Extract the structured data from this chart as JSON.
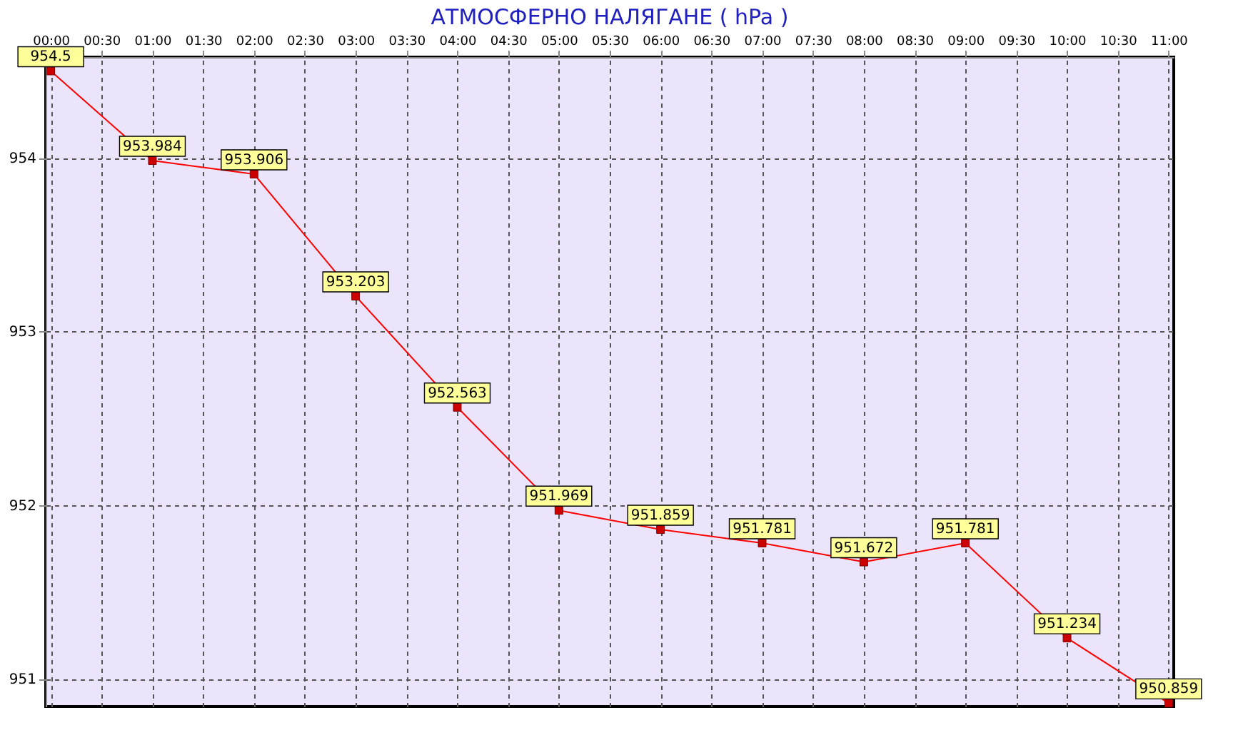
{
  "chart_data": {
    "type": "line",
    "title": "АТМОСФЕРНО НАЛЯГАНЕ  ( hPa )",
    "x": [
      0,
      1,
      2,
      3,
      4,
      5,
      6,
      7,
      8,
      9,
      10,
      11
    ],
    "series": [
      {
        "color": "#ff0000",
        "values": [
          954.5,
          953.984,
          953.906,
          953.203,
          952.563,
          951.969,
          951.859,
          951.781,
          951.672,
          951.781,
          951.234,
          950.859
        ]
      }
    ],
    "xlim": [
      -0.05,
      11.05
    ],
    "xticks": [
      {
        "value": 0,
        "label": "00:00"
      },
      {
        "value": 0.5,
        "label": "00:30"
      },
      {
        "value": 1,
        "label": "01:00"
      },
      {
        "value": 1.5,
        "label": "01:30"
      },
      {
        "value": 2,
        "label": "02:00"
      },
      {
        "value": 2.5,
        "label": "02:30"
      },
      {
        "value": 3,
        "label": "03:00"
      },
      {
        "value": 3.5,
        "label": "03:30"
      },
      {
        "value": 4,
        "label": "04:00"
      },
      {
        "value": 4.5,
        "label": "04:30"
      },
      {
        "value": 5,
        "label": "05:00"
      },
      {
        "value": 5.5,
        "label": "05:30"
      },
      {
        "value": 6,
        "label": "06:00"
      },
      {
        "value": 6.5,
        "label": "06:30"
      },
      {
        "value": 7,
        "label": "07:00"
      },
      {
        "value": 7.5,
        "label": "07:30"
      },
      {
        "value": 8,
        "label": "08:00"
      },
      {
        "value": 8.5,
        "label": "08:30"
      },
      {
        "value": 9,
        "label": "09:00"
      },
      {
        "value": 9.5,
        "label": "09:30"
      },
      {
        "value": 10,
        "label": "10:00"
      },
      {
        "value": 10.5,
        "label": "10:30"
      },
      {
        "value": 11,
        "label": "11:00"
      }
    ],
    "ylim": [
      950.84,
      954.58
    ],
    "yticks": [
      951,
      952,
      953,
      954
    ],
    "grid": true,
    "marker": "square",
    "line_style": "solid",
    "data_labels": true
  }
}
